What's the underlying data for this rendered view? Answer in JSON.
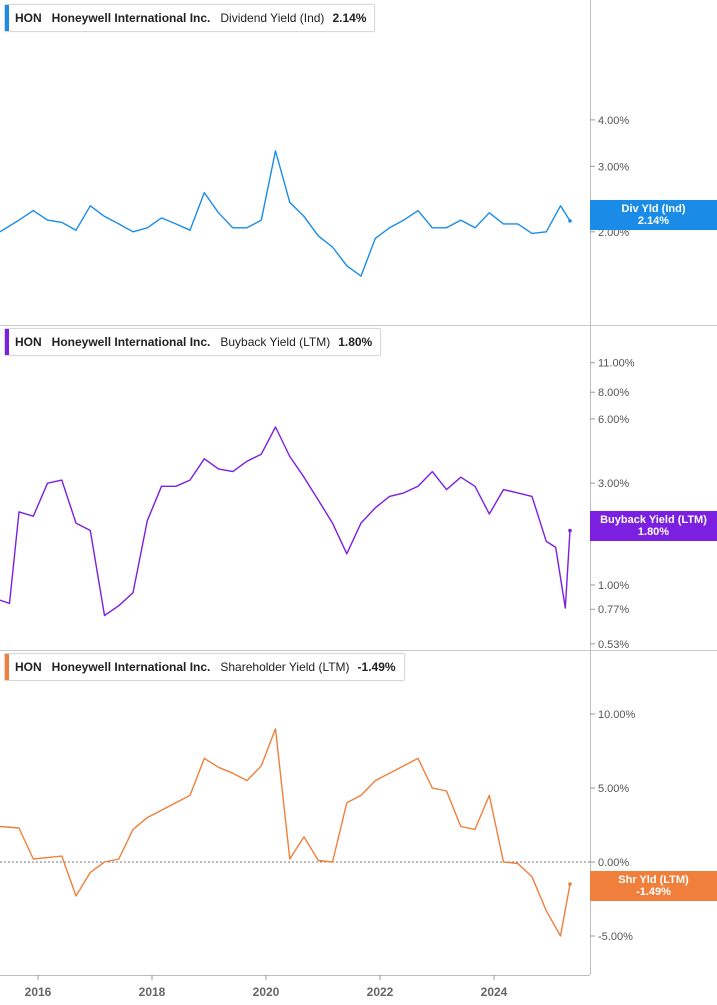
{
  "ticker": "HON",
  "company": "Honeywell International Inc.",
  "x_tick_labels": [
    "2016",
    "2018",
    "2020",
    "2022",
    "2024"
  ],
  "panels": [
    {
      "metric": "Dividend Yield (Ind)",
      "value": "2.14%",
      "tag_label": "Div Yld (Ind)",
      "tag_value": "2.14%",
      "color": "#1a8ce8",
      "scale": "log",
      "y_tick_labels": [
        "4.00%",
        "3.00%",
        "2.00%"
      ]
    },
    {
      "metric": "Buyback Yield (LTM)",
      "value": "1.80%",
      "tag_label": "Buyback Yield (LTM)",
      "tag_value": "1.80%",
      "color": "#7b1fe0",
      "scale": "log",
      "y_tick_labels": [
        "11.00%",
        "8.00%",
        "6.00%",
        "3.00%",
        "1.00%",
        "0.77%",
        "0.53%"
      ]
    },
    {
      "metric": "Shareholder Yield (LTM)",
      "value": "-1.49%",
      "tag_label": "Shr Yld (LTM)",
      "tag_value": "-1.49%",
      "color": "#f07f3c",
      "scale": "linear",
      "y_tick_labels": [
        "10.00%",
        "5.00%",
        "0.00%",
        "-5.00%"
      ],
      "zero_line": true
    }
  ],
  "chart_data": [
    {
      "type": "line",
      "name": "Dividend Yield (Ind)",
      "x": [
        "2015-05",
        "2015-09",
        "2015-12",
        "2016-03",
        "2016-06",
        "2016-09",
        "2016-12",
        "2017-03",
        "2017-06",
        "2017-09",
        "2017-12",
        "2018-03",
        "2018-06",
        "2018-09",
        "2018-12",
        "2019-03",
        "2019-06",
        "2019-09",
        "2019-12",
        "2020-03",
        "2020-06",
        "2020-09",
        "2020-12",
        "2021-03",
        "2021-06",
        "2021-09",
        "2021-12",
        "2022-03",
        "2022-06",
        "2022-09",
        "2022-12",
        "2023-03",
        "2023-06",
        "2023-09",
        "2023-12",
        "2024-03",
        "2024-06",
        "2024-09",
        "2024-12",
        "2025-03",
        "2025-05"
      ],
      "y": [
        2.0,
        2.15,
        2.28,
        2.15,
        2.12,
        2.02,
        2.35,
        2.2,
        2.1,
        2.0,
        2.05,
        2.18,
        2.1,
        2.02,
        2.55,
        2.25,
        2.05,
        2.05,
        2.15,
        3.3,
        2.4,
        2.2,
        1.95,
        1.82,
        1.62,
        1.52,
        1.92,
        2.05,
        2.15,
        2.28,
        2.05,
        2.05,
        2.15,
        2.05,
        2.25,
        2.1,
        2.1,
        1.98,
        2.0,
        2.35,
        2.14
      ]
    },
    {
      "type": "line",
      "name": "Buyback Yield (LTM)",
      "x": [
        "2015-05",
        "2015-07",
        "2015-09",
        "2015-12",
        "2016-03",
        "2016-06",
        "2016-09",
        "2016-12",
        "2017-03",
        "2017-06",
        "2017-09",
        "2017-12",
        "2018-03",
        "2018-06",
        "2018-09",
        "2018-12",
        "2019-03",
        "2019-06",
        "2019-09",
        "2019-12",
        "2020-03",
        "2020-06",
        "2020-09",
        "2020-12",
        "2021-03",
        "2021-06",
        "2021-09",
        "2021-12",
        "2022-03",
        "2022-06",
        "2022-09",
        "2022-12",
        "2023-03",
        "2023-06",
        "2023-09",
        "2023-12",
        "2024-03",
        "2024-06",
        "2024-09",
        "2024-12",
        "2025-02",
        "2025-04",
        "2025-05"
      ],
      "y": [
        0.85,
        0.82,
        2.2,
        2.1,
        3.0,
        3.1,
        1.95,
        1.8,
        0.72,
        0.8,
        0.92,
        2.0,
        2.9,
        2.9,
        3.1,
        3.9,
        3.5,
        3.4,
        3.8,
        4.1,
        5.5,
        4.0,
        3.2,
        2.5,
        1.95,
        1.4,
        1.95,
        2.3,
        2.6,
        2.7,
        2.9,
        3.4,
        2.8,
        3.2,
        2.9,
        2.15,
        2.8,
        2.7,
        2.6,
        1.6,
        1.5,
        0.78,
        1.8
      ]
    },
    {
      "type": "line",
      "name": "Shareholder Yield (LTM)",
      "x": [
        "2015-05",
        "2015-09",
        "2015-12",
        "2016-03",
        "2016-06",
        "2016-09",
        "2016-12",
        "2017-03",
        "2017-06",
        "2017-09",
        "2017-12",
        "2018-03",
        "2018-06",
        "2018-09",
        "2018-12",
        "2019-03",
        "2019-06",
        "2019-09",
        "2019-12",
        "2020-03",
        "2020-06",
        "2020-09",
        "2020-12",
        "2021-03",
        "2021-06",
        "2021-09",
        "2021-12",
        "2022-03",
        "2022-06",
        "2022-09",
        "2022-12",
        "2023-03",
        "2023-06",
        "2023-09",
        "2023-12",
        "2024-03",
        "2024-06",
        "2024-09",
        "2024-12",
        "2025-03",
        "2025-05"
      ],
      "y": [
        2.4,
        2.3,
        0.2,
        0.3,
        0.4,
        -2.3,
        -0.7,
        0.0,
        0.2,
        2.2,
        3.0,
        3.5,
        4.0,
        4.5,
        7.0,
        6.4,
        6.0,
        5.5,
        6.5,
        9.0,
        0.2,
        1.7,
        0.1,
        0.0,
        4.0,
        4.5,
        5.5,
        6.0,
        6.5,
        7.0,
        5.0,
        4.8,
        2.4,
        2.2,
        4.5,
        0.0,
        -0.1,
        -1.0,
        -3.3,
        -5.0,
        -1.49
      ]
    }
  ]
}
